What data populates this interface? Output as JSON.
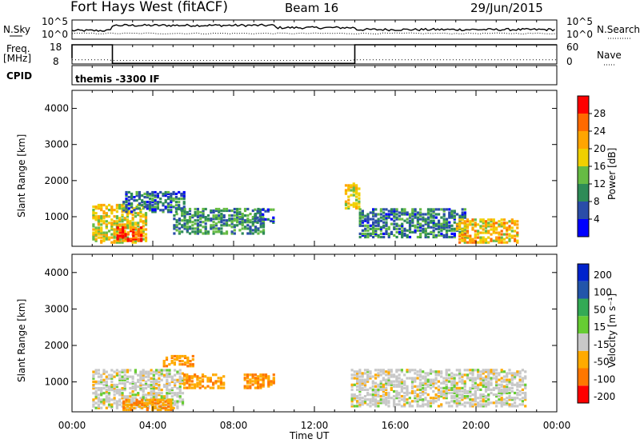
{
  "header": {
    "station": "Fort Hays West (fitACF)",
    "beam": "Beam 16",
    "date": "29/Jun/2015"
  },
  "top_panels": {
    "nsky_label": "N.Sky",
    "nsky_ticks": [
      "10^5",
      "10^0"
    ],
    "nsearch_label": "N.Search",
    "nsearch_ticks": [
      "10^5",
      "10^0"
    ],
    "freq_label": "Freq.",
    "freq_unit": "[MHz]",
    "freq_ticks": [
      "18",
      "8"
    ],
    "nave_label": "Nave",
    "nave_ticks": [
      "60",
      "0"
    ],
    "cpid_label": "CPID",
    "cpid_text": "themis -3300 IF"
  },
  "colors": {
    "power_scale": [
      "#0000ff",
      "#2a4da8",
      "#2e8b57",
      "#66bb44",
      "#f0d000",
      "#ffa500",
      "#ff6a00",
      "#ff0000"
    ],
    "velocity_scale": [
      "#0022cc",
      "#2255aa",
      "#33aa55",
      "#66cc33",
      "#c8c8c8",
      "#ffaa00",
      "#ff7700",
      "#ff0000"
    ]
  },
  "chart_data": [
    {
      "type": "heatmap",
      "name": "Power panel",
      "ylabel": "Slant Range [km]",
      "yticks": [
        "4000",
        "3000",
        "2000",
        "1000"
      ],
      "ylim": [
        180,
        4500
      ],
      "xlim": [
        0,
        24
      ],
      "colorbar_label": "Power [dB]",
      "colorbar_ticks": [
        "28",
        "24",
        "20",
        "16",
        "12",
        "8",
        "4"
      ],
      "colorbar_range": [
        0,
        32
      ],
      "echo_regions": [
        {
          "t0": 1.0,
          "t1": 3.6,
          "r0": 250,
          "r1": 1300,
          "power": 18
        },
        {
          "t0": 2.2,
          "t1": 3.4,
          "r0": 300,
          "r1": 700,
          "power": 28
        },
        {
          "t0": 2.5,
          "t1": 5.5,
          "r0": 1100,
          "r1": 1650,
          "power": 8
        },
        {
          "t0": 5.0,
          "t1": 9.5,
          "r0": 500,
          "r1": 1200,
          "power": 10
        },
        {
          "t0": 9.0,
          "t1": 10.0,
          "r0": 800,
          "r1": 1200,
          "power": 8
        },
        {
          "t0": 13.5,
          "t1": 14.2,
          "r0": 1200,
          "r1": 1900,
          "power": 18
        },
        {
          "t0": 14.2,
          "t1": 19.5,
          "r0": 400,
          "r1": 1200,
          "power": 9
        },
        {
          "t0": 19.0,
          "t1": 22.0,
          "r0": 250,
          "r1": 900,
          "power": 20
        }
      ]
    },
    {
      "type": "heatmap",
      "name": "Velocity panel",
      "ylabel": "Slant Range [km]",
      "yticks": [
        "4000",
        "3000",
        "2000",
        "1000"
      ],
      "ylim": [
        180,
        4500
      ],
      "xlim": [
        0,
        24
      ],
      "xlabel": "Time UT",
      "xticks": [
        "00:00",
        "04:00",
        "08:00",
        "12:00",
        "16:00",
        "20:00",
        "00:00"
      ],
      "colorbar_label": "Velocity [m s⁻¹]",
      "colorbar_ticks": [
        "200",
        "100",
        "50",
        "15",
        "-15",
        "-50",
        "-100",
        "-200"
      ],
      "colorbar_range": [
        -250,
        250
      ],
      "echo_regions": [
        {
          "t0": 1.0,
          "t1": 5.5,
          "r0": 250,
          "r1": 1300,
          "velocity": 0
        },
        {
          "t0": 2.5,
          "t1": 5.0,
          "r0": 200,
          "r1": 500,
          "velocity": -40
        },
        {
          "t0": 4.5,
          "t1": 6.0,
          "r0": 1400,
          "r1": 1700,
          "velocity": -40
        },
        {
          "t0": 5.5,
          "t1": 7.5,
          "r0": 800,
          "r1": 1200,
          "velocity": -45
        },
        {
          "t0": 8.5,
          "t1": 10.0,
          "r0": 800,
          "r1": 1200,
          "velocity": -45
        },
        {
          "t0": 13.8,
          "t1": 22.5,
          "r0": 300,
          "r1": 1300,
          "velocity": 0
        }
      ]
    }
  ]
}
